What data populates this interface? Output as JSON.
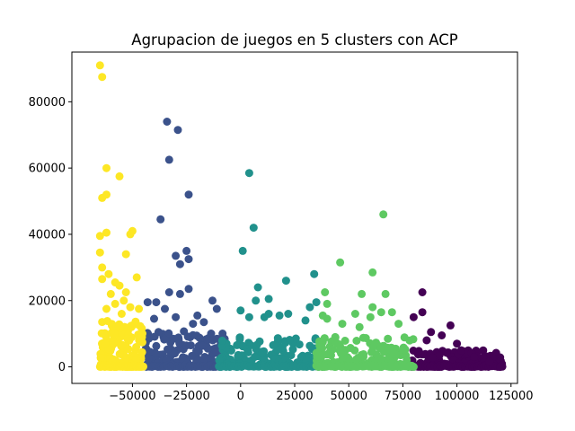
{
  "chart_data": {
    "type": "scatter",
    "title": "Agrupacion de juegos en 5 clusters con ACP",
    "xlabel": "",
    "ylabel": "",
    "xlim": [
      -78000,
      128000
    ],
    "ylim": [
      -5000,
      95000
    ],
    "grid": false,
    "legend": "none",
    "x_ticks": [
      -50000,
      -25000,
      0,
      25000,
      50000,
      75000,
      100000,
      125000
    ],
    "x_tick_labels": [
      "−50000",
      "−25000",
      "0",
      "25000",
      "50000",
      "75000",
      "100000",
      "125000"
    ],
    "y_ticks": [
      0,
      20000,
      40000,
      60000,
      80000
    ],
    "y_tick_labels": [
      "0",
      "20000",
      "40000",
      "60000",
      "80000"
    ],
    "colors": {
      "cluster_0": "#440154",
      "cluster_1": "#3b528b",
      "cluster_2": "#21918c",
      "cluster_3": "#5ec962",
      "cluster_4": "#fde725"
    },
    "series": [
      {
        "color": "#440154",
        "x_range": [
          78000,
          121000
        ],
        "y_max_dense": 5000,
        "outliers": [
          [
            84000,
            22500
          ],
          [
            80000,
            15000
          ],
          [
            84000,
            16500
          ],
          [
            97000,
            12500
          ],
          [
            88000,
            10500
          ],
          [
            93000,
            9500
          ],
          [
            86000,
            8000
          ],
          [
            100000,
            7000
          ],
          [
            102000,
            5000
          ],
          [
            108000,
            3000
          ],
          [
            115000,
            1500
          ],
          [
            120000,
            0
          ]
        ]
      },
      {
        "color": "#3b528b",
        "x_range": [
          -44000,
          -7000
        ],
        "y_max_dense": 11000,
        "outliers": [
          [
            -34000,
            74000
          ],
          [
            -29000,
            71500
          ],
          [
            -33000,
            62500
          ],
          [
            -24000,
            52000
          ],
          [
            -37000,
            44500
          ],
          [
            -25000,
            35000
          ],
          [
            -30000,
            33500
          ],
          [
            -24000,
            32500
          ],
          [
            -28000,
            31000
          ],
          [
            -24000,
            23500
          ],
          [
            -33000,
            22500
          ],
          [
            -28000,
            22000
          ],
          [
            -43000,
            19500
          ],
          [
            -39000,
            19500
          ],
          [
            -13000,
            20000
          ],
          [
            -35000,
            17500
          ],
          [
            -11000,
            17500
          ],
          [
            -20000,
            15500
          ],
          [
            -30000,
            15000
          ],
          [
            -17000,
            13500
          ],
          [
            -40000,
            14500
          ],
          [
            -22000,
            13000
          ]
        ]
      },
      {
        "color": "#21918c",
        "x_range": [
          -10000,
          36000
        ],
        "y_max_dense": 9500,
        "outliers": [
          [
            4000,
            58500
          ],
          [
            6000,
            42000
          ],
          [
            1000,
            35000
          ],
          [
            34000,
            28000
          ],
          [
            21000,
            26000
          ],
          [
            8000,
            24000
          ],
          [
            7000,
            20000
          ],
          [
            13000,
            20500
          ],
          [
            32000,
            18000
          ],
          [
            0,
            17000
          ],
          [
            4000,
            15000
          ],
          [
            13000,
            16000
          ],
          [
            22000,
            16000
          ],
          [
            30000,
            14000
          ],
          [
            11000,
            15000
          ],
          [
            18000,
            15500
          ],
          [
            35000,
            19500
          ]
        ]
      },
      {
        "color": "#5ec962",
        "x_range": [
          35000,
          80000
        ],
        "y_max_dense": 9000,
        "outliers": [
          [
            66000,
            46000
          ],
          [
            46000,
            31500
          ],
          [
            61000,
            28500
          ],
          [
            39000,
            22500
          ],
          [
            56000,
            22000
          ],
          [
            67000,
            22000
          ],
          [
            40000,
            19000
          ],
          [
            61000,
            18000
          ],
          [
            65000,
            16500
          ],
          [
            53000,
            16000
          ],
          [
            70000,
            16500
          ],
          [
            38000,
            15500
          ],
          [
            47000,
            13000
          ],
          [
            60000,
            15000
          ],
          [
            73000,
            13000
          ],
          [
            40000,
            14500
          ],
          [
            55000,
            12000
          ]
        ]
      },
      {
        "color": "#fde725",
        "x_range": [
          -65000,
          -45000
        ],
        "y_max_dense": 14000,
        "outliers": [
          [
            -65000,
            91000
          ],
          [
            -64000,
            87500
          ],
          [
            -62000,
            60000
          ],
          [
            -56000,
            57500
          ],
          [
            -62000,
            52000
          ],
          [
            -64000,
            51000
          ],
          [
            -62000,
            40500
          ],
          [
            -50000,
            41000
          ],
          [
            -51000,
            40000
          ],
          [
            -65000,
            39500
          ],
          [
            -65000,
            34500
          ],
          [
            -53000,
            34000
          ],
          [
            -64000,
            30000
          ],
          [
            -48000,
            27000
          ],
          [
            -61000,
            28000
          ],
          [
            -64000,
            26500
          ],
          [
            -58000,
            25500
          ],
          [
            -56000,
            24500
          ],
          [
            -53000,
            22500
          ],
          [
            -60000,
            22000
          ],
          [
            -54000,
            20000
          ],
          [
            -58000,
            19000
          ],
          [
            -51000,
            18000
          ],
          [
            -47000,
            17500
          ],
          [
            -62000,
            17500
          ],
          [
            -55000,
            16000
          ]
        ]
      }
    ]
  }
}
